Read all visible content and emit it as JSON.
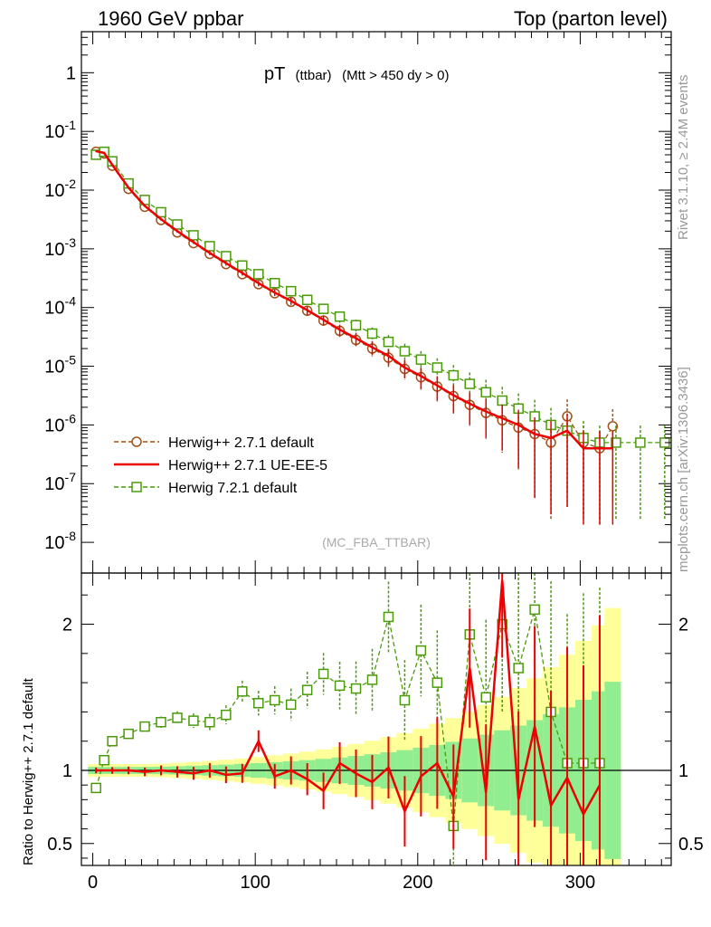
{
  "header": {
    "left": "1960 GeV ppbar",
    "right": "Top (parton level)"
  },
  "side_text": {
    "rivet": "Rivet 3.1.10, ≥ 2.4M events",
    "mcplots": "mcplots.cern.ch [arXiv:1306.3436]"
  },
  "colors": {
    "herwigpp_default": "#a0521a",
    "herwigpp_ueee5": "#ee0000",
    "herwig7_default": "#4a9a0a",
    "band_inner": "#90ee90",
    "band_outer": "#ffff99"
  },
  "chart_data": [
    {
      "type": "line",
      "title": "pT",
      "title_suffix_a": "(ttbar)",
      "title_suffix_b": "(Mtt > 450 dy > 0)",
      "watermark": "(MC_FBA_TTBAR)",
      "xlim": [
        -7,
        356
      ],
      "ylim": [
        3e-09,
        5
      ],
      "yscale": "log",
      "y_tick_labels": [
        "10^-8",
        "10^-7",
        "10^-6",
        "10^-5",
        "10^-4",
        "10^-3",
        "10^-2",
        "10^-1",
        "1"
      ],
      "legend": {
        "placement": "middle-left",
        "entries": [
          "Herwig++ 2.7.1 default",
          "Herwig++ 2.7.1 UE-EE-5",
          "Herwig 7.2.1 default"
        ]
      },
      "series": [
        {
          "name": "Herwig++ 2.7.1 default",
          "style": "dashed-circle",
          "x": [
            2,
            7,
            12,
            22,
            32,
            42,
            52,
            62,
            72,
            82,
            92,
            102,
            112,
            122,
            132,
            142,
            152,
            162,
            172,
            182,
            192,
            202,
            212,
            222,
            232,
            242,
            252,
            262,
            272,
            282,
            292,
            302,
            312,
            320
          ],
          "y": [
            0.045,
            0.042,
            0.026,
            0.0105,
            0.0052,
            0.0031,
            0.0019,
            0.00125,
            0.00082,
            0.00055,
            0.00037,
            0.00025,
            0.000175,
            0.000125,
            8.8e-05,
            6e-05,
            4e-05,
            2.8e-05,
            2e-05,
            1.4e-05,
            9e-06,
            6.5e-06,
            4.5e-06,
            3.1e-06,
            2.2e-06,
            1.6e-06,
            1.2e-06,
            9e-07,
            7e-07,
            5e-07,
            1.4e-06,
            5e-07,
            4e-07,
            9.5e-07
          ]
        },
        {
          "name": "Herwig++ 2.7.1 UE-EE-5",
          "style": "solid",
          "x": [
            2,
            7,
            12,
            22,
            32,
            42,
            52,
            62,
            72,
            82,
            92,
            102,
            112,
            122,
            132,
            142,
            152,
            162,
            172,
            182,
            192,
            202,
            212,
            222,
            232,
            242,
            252,
            262,
            272,
            282,
            292,
            302,
            312,
            320
          ],
          "y": [
            0.046,
            0.043,
            0.027,
            0.011,
            0.0054,
            0.0032,
            0.002,
            0.0013,
            0.00085,
            0.00057,
            0.00039,
            0.00026,
            0.00018,
            0.00013,
            9e-05,
            6.2e-05,
            4.2e-05,
            3e-05,
            2.1e-05,
            1.5e-05,
            9.5e-06,
            6.8e-06,
            4.7e-06,
            3.2e-06,
            2.3e-06,
            1.7e-06,
            1.3e-06,
            1e-06,
            7e-07,
            6e-07,
            8e-07,
            4e-07,
            4e-07,
            4e-07
          ]
        },
        {
          "name": "Herwig 7.2.1 default",
          "style": "dashed-square",
          "x": [
            2,
            7,
            12,
            22,
            32,
            42,
            52,
            62,
            72,
            82,
            92,
            102,
            112,
            122,
            132,
            142,
            152,
            162,
            172,
            182,
            192,
            202,
            212,
            222,
            232,
            242,
            252,
            262,
            272,
            282,
            292,
            302,
            312,
            322,
            337,
            352
          ],
          "y": [
            0.04,
            0.045,
            0.031,
            0.013,
            0.0068,
            0.0042,
            0.0026,
            0.0017,
            0.00111,
            0.00075,
            0.00052,
            0.00037,
            0.00026,
            0.00019,
            0.000135,
            9.5e-05,
            7e-05,
            5e-05,
            3.6e-05,
            2.6e-05,
            1.8e-05,
            1.3e-05,
            9.5e-06,
            7e-06,
            5e-06,
            3.6e-06,
            2.6e-06,
            1.9e-06,
            1.4e-06,
            1e-06,
            8e-07,
            6e-07,
            5e-07,
            5e-07,
            5e-07,
            5e-07
          ]
        }
      ]
    },
    {
      "type": "line",
      "ylabel": "Ratio to Herwig++ 2.7.1 default",
      "xlim": [
        -7,
        356
      ],
      "ylim": [
        0.35,
        2.35
      ],
      "x_ticks": [
        0,
        100,
        200,
        300
      ],
      "y_ticks": [
        0.5,
        1,
        2
      ],
      "reference_line": 1,
      "series": [
        {
          "name": "Herwig++ 2.7.1 UE-EE-5",
          "x": [
            2,
            12,
            22,
            32,
            42,
            52,
            62,
            72,
            82,
            92,
            102,
            112,
            122,
            132,
            142,
            152,
            162,
            172,
            182,
            192,
            202,
            212,
            222,
            232,
            242,
            252,
            262,
            272,
            282,
            292,
            302,
            312
          ],
          "y": [
            1.0,
            1.0,
            1.0,
            0.99,
            1.0,
            0.99,
            0.98,
            1.0,
            0.97,
            0.98,
            1.2,
            0.96,
            1.0,
            0.94,
            0.86,
            1.05,
            0.98,
            0.92,
            1.02,
            0.72,
            0.96,
            1.05,
            0.82,
            1.7,
            0.85,
            2.3,
            0.8,
            1.3,
            0.76,
            0.95,
            0.7,
            0.9
          ]
        },
        {
          "name": "Herwig 7.2.1 default",
          "x": [
            2,
            7,
            12,
            22,
            32,
            42,
            52,
            62,
            72,
            82,
            92,
            102,
            112,
            122,
            132,
            142,
            152,
            162,
            172,
            182,
            192,
            202,
            212,
            222,
            232,
            242,
            252,
            262,
            272,
            282,
            292,
            302,
            312
          ],
          "y": [
            0.88,
            1.07,
            1.2,
            1.25,
            1.3,
            1.33,
            1.36,
            1.34,
            1.33,
            1.38,
            1.54,
            1.46,
            1.48,
            1.45,
            1.55,
            1.66,
            1.58,
            1.56,
            1.62,
            2.05,
            1.48,
            1.82,
            1.6,
            0.62,
            1.93,
            1.5,
            2.0,
            1.7,
            2.1,
            1.4,
            1.05,
            1.05,
            1.05
          ]
        }
      ]
    }
  ]
}
